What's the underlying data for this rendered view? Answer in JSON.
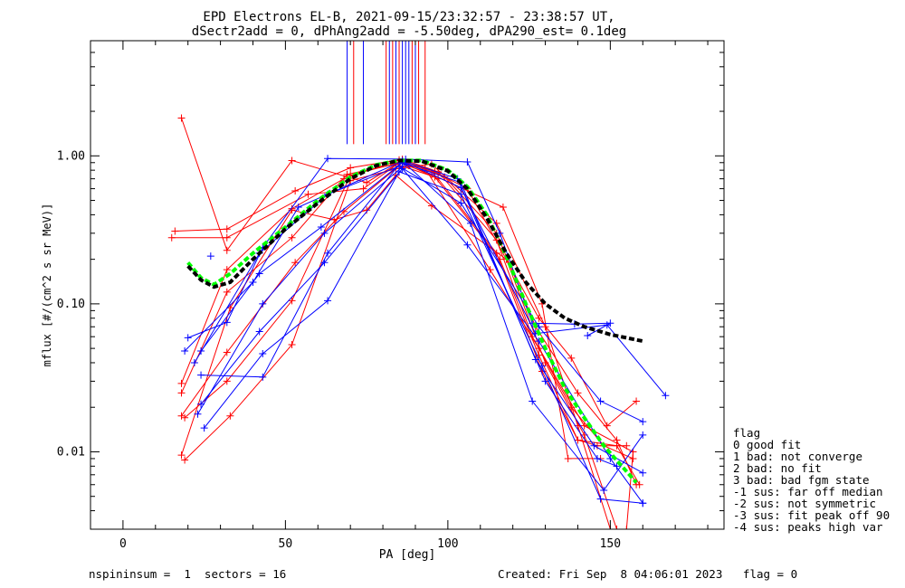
{
  "chart_data": {
    "type": "line",
    "title": "EPD Electrons EL-B, 2021-09-15/23:32:57 - 23:38:57 UT,",
    "subtitle": "dSectr2add = 0, dPhAng2add = -5.50deg, dPA290_est=   0.1deg",
    "xlabel": "PA [deg]",
    "ylabel": "mflux [#/(cm^2 s sr MeV)]",
    "xlim": [
      -10,
      185
    ],
    "ylim": [
      0.003,
      6
    ],
    "yscale": "log",
    "xticks": [
      0,
      50,
      100,
      150
    ],
    "xtick_labels": [
      "0",
      "50",
      "100",
      "150"
    ],
    "yticks": [
      0.01,
      0.1,
      1.0
    ],
    "ytick_labels": [
      "0.01",
      "0.10",
      "1.00"
    ],
    "grid": false,
    "legend": {
      "title": "flag",
      "entries": [
        " 0 good fit",
        " 1 bad: not converge",
        " 2 bad: no fit",
        " 3 bad: bad fgm state",
        "-1 sus: far off median",
        "-2 sus: not symmetric",
        "-3 sus: fit peak off 90",
        "-4 sus: peaks high var"
      ],
      "placement": "right-bottom"
    },
    "footer_left": "nspininsum =  1  sectors = 16",
    "footer_right": "Created: Fri Sep  8 04:06:01 2023   flag = 0",
    "colors": {
      "red": "#ff0000",
      "blue": "#0000ff",
      "green": "#00ff00",
      "black": "#000000"
    },
    "vlines": [
      {
        "x": 69,
        "color": "#0000ff"
      },
      {
        "x": 71,
        "color": "#ff0000"
      },
      {
        "x": 74,
        "color": "#0000ff"
      },
      {
        "x": 81,
        "color": "#ff0000"
      },
      {
        "x": 82,
        "color": "#0000ff"
      },
      {
        "x": 83,
        "color": "#ff0000"
      },
      {
        "x": 84,
        "color": "#0000ff"
      },
      {
        "x": 85,
        "color": "#ff0000"
      },
      {
        "x": 86,
        "color": "#0000ff"
      },
      {
        "x": 87,
        "color": "#0000ff"
      },
      {
        "x": 88,
        "color": "#0000ff"
      },
      {
        "x": 89,
        "color": "#ff0000"
      },
      {
        "x": 90,
        "color": "#0000ff"
      },
      {
        "x": 91,
        "color": "#ff0000"
      },
      {
        "x": 93,
        "color": "#ff0000"
      }
    ],
    "series": [
      {
        "color": "#ff0000",
        "points": [
          [
            18,
            1.8
          ],
          [
            32,
            0.23
          ],
          [
            52,
            0.93
          ],
          [
            75,
            0.66
          ],
          [
            85,
            0.9
          ],
          [
            95,
            0.75
          ],
          [
            117,
            0.45
          ],
          [
            129,
            0.1
          ],
          [
            137,
            0.009
          ],
          [
            147,
            0.009
          ]
        ]
      },
      {
        "color": "#ff0000",
        "points": [
          [
            16,
            0.31
          ],
          [
            32,
            0.32
          ],
          [
            53,
            0.58
          ],
          [
            70,
            0.83
          ],
          [
            85,
            0.94
          ],
          [
            96,
            0.78
          ],
          [
            106,
            0.6
          ],
          [
            128,
            0.08
          ],
          [
            138,
            0.043
          ],
          [
            149,
            0.015
          ],
          [
            158,
            0.022
          ]
        ]
      },
      {
        "color": "#ff0000",
        "points": [
          [
            15,
            0.28
          ],
          [
            32,
            0.28
          ],
          [
            57,
            0.55
          ],
          [
            74,
            0.6
          ],
          [
            86,
            0.93
          ],
          [
            99,
            0.72
          ],
          [
            115,
            0.3
          ],
          [
            127,
            0.07
          ],
          [
            140,
            0.025
          ],
          [
            152,
            0.012
          ],
          [
            158,
            0.006
          ]
        ]
      },
      {
        "color": "#ff0000",
        "points": [
          [
            18,
            0.029
          ],
          [
            32,
            0.17
          ],
          [
            52,
            0.44
          ],
          [
            68,
            0.7
          ],
          [
            86,
            0.95
          ],
          [
            97,
            0.78
          ],
          [
            115,
            0.27
          ],
          [
            126,
            0.06
          ],
          [
            142,
            0.015
          ],
          [
            157,
            0.01
          ],
          [
            155,
            0.003
          ]
        ]
      },
      {
        "color": "#ff0000",
        "points": [
          [
            18,
            0.025
          ],
          [
            32,
            0.12
          ],
          [
            52,
            0.28
          ],
          [
            69,
            0.75
          ],
          [
            84,
            0.88
          ],
          [
            96,
            0.72
          ],
          [
            116,
            0.2
          ],
          [
            128,
            0.045
          ],
          [
            140,
            0.012
          ],
          [
            152,
            0.011
          ],
          [
            159,
            0.006
          ]
        ]
      },
      {
        "color": "#ff0000",
        "points": [
          [
            18,
            0.0175
          ],
          [
            32,
            0.047
          ],
          [
            53,
            0.19
          ],
          [
            68,
            0.42
          ],
          [
            84,
            0.82
          ],
          [
            95,
            0.88
          ],
          [
            115,
            0.35
          ],
          [
            130,
            0.07
          ],
          [
            140,
            0.015
          ],
          [
            150,
            0.003
          ]
        ]
      },
      {
        "color": "#ff0000",
        "points": [
          [
            19,
            0.017
          ],
          [
            32,
            0.03
          ],
          [
            52,
            0.105
          ],
          [
            70,
            0.74
          ],
          [
            85,
            0.9
          ],
          [
            93,
            0.82
          ],
          [
            113,
            0.17
          ],
          [
            128,
            0.05
          ],
          [
            138,
            0.02
          ],
          [
            148,
            0.011
          ],
          [
            157,
            0.009
          ]
        ]
      },
      {
        "color": "#ff0000",
        "points": [
          [
            18,
            0.0095
          ],
          [
            33,
            0.094
          ],
          [
            52,
            0.43
          ],
          [
            65,
            0.37
          ],
          [
            75,
            0.43
          ],
          [
            84,
            0.74
          ],
          [
            95,
            0.46
          ],
          [
            118,
            0.2
          ],
          [
            130,
            0.04
          ],
          [
            142,
            0.013
          ],
          [
            152,
            0.003
          ]
        ]
      },
      {
        "color": "#ff0000",
        "points": [
          [
            19,
            0.0088
          ],
          [
            33,
            0.0175
          ],
          [
            52,
            0.053
          ],
          [
            70,
            0.68
          ],
          [
            88,
            0.86
          ],
          [
            97,
            0.7
          ],
          [
            115,
            0.22
          ],
          [
            129,
            0.035
          ],
          [
            140,
            0.012
          ],
          [
            146,
            0.011
          ],
          [
            155,
            0.011
          ]
        ]
      },
      {
        "color": "#0000ff",
        "points": [
          [
            20,
            0.059
          ],
          [
            32,
            0.075
          ],
          [
            43,
            0.24
          ],
          [
            63,
            0.96
          ],
          [
            87,
            0.95
          ],
          [
            106,
            0.91
          ],
          [
            116,
            0.3
          ],
          [
            126,
            0.074
          ],
          [
            139,
            0.073
          ],
          [
            150,
            0.074
          ],
          [
            143,
            0.061
          ]
        ]
      },
      {
        "color": "#0000ff",
        "points": [
          [
            19,
            0.048
          ],
          [
            40,
            0.14
          ],
          [
            54,
            0.45
          ],
          [
            86,
            0.92
          ],
          [
            104,
            0.61
          ],
          [
            127,
            0.063
          ],
          [
            149,
            0.072
          ],
          [
            167,
            0.024
          ]
        ]
      },
      {
        "color": "#0000ff",
        "points": [
          [
            22,
            0.04
          ],
          [
            42,
            0.22
          ],
          [
            63,
            0.55
          ],
          [
            85,
            0.85
          ],
          [
            104,
            0.48
          ],
          [
            128,
            0.07
          ],
          [
            147,
            0.022
          ],
          [
            160,
            0.016
          ]
        ]
      },
      {
        "color": "#0000ff",
        "points": [
          [
            24,
            0.048
          ],
          [
            42,
            0.16
          ],
          [
            61,
            0.33
          ],
          [
            86,
            0.9
          ],
          [
            104,
            0.66
          ],
          [
            127,
            0.042
          ],
          [
            145,
            0.011
          ],
          [
            160,
            0.0072
          ]
        ]
      },
      {
        "color": "#0000ff",
        "points": [
          [
            23,
            0.018
          ],
          [
            43,
            0.1
          ],
          [
            62,
            0.3
          ],
          [
            87,
            0.88
          ],
          [
            107,
            0.35
          ],
          [
            126,
            0.022
          ],
          [
            148,
            0.0055
          ],
          [
            160,
            0.013
          ]
        ]
      },
      {
        "color": "#0000ff",
        "points": [
          [
            24,
            0.021
          ],
          [
            42,
            0.065
          ],
          [
            62,
            0.19
          ],
          [
            86,
            0.82
          ],
          [
            106,
            0.25
          ],
          [
            128,
            0.056
          ],
          [
            150,
            0.009
          ],
          [
            160,
            0.0045
          ]
        ]
      },
      {
        "color": "#0000ff",
        "points": [
          [
            25,
            0.0145
          ],
          [
            43,
            0.046
          ],
          [
            63,
            0.105
          ],
          [
            85,
            0.78
          ],
          [
            104,
            0.55
          ],
          [
            129,
            0.038
          ],
          [
            147,
            0.0048
          ],
          [
            160,
            0.0045
          ]
        ]
      },
      {
        "color": "#0000ff",
        "points": [
          [
            24,
            0.033
          ],
          [
            43,
            0.032
          ],
          [
            63,
            0.22
          ],
          [
            86,
            0.93
          ],
          [
            103,
            0.7
          ],
          [
            130,
            0.03
          ],
          [
            146,
            0.009
          ],
          [
            152,
            0.008
          ]
        ]
      },
      {
        "color": "#0000ff",
        "points": [
          [
            27,
            0.21
          ]
        ]
      }
    ],
    "fits": [
      {
        "name": "",
        "color": "#00ff00",
        "style": "dashed",
        "points": [
          [
            20,
            0.19
          ],
          [
            24,
            0.15
          ],
          [
            28,
            0.135
          ],
          [
            33,
            0.16
          ],
          [
            40,
            0.22
          ],
          [
            50,
            0.33
          ],
          [
            60,
            0.5
          ],
          [
            70,
            0.72
          ],
          [
            78,
            0.87
          ],
          [
            85,
            0.93
          ],
          [
            92,
            0.93
          ],
          [
            100,
            0.8
          ],
          [
            106,
            0.62
          ],
          [
            112,
            0.4
          ],
          [
            118,
            0.21
          ],
          [
            124,
            0.1
          ],
          [
            130,
            0.05
          ],
          [
            136,
            0.027
          ],
          [
            142,
            0.017
          ],
          [
            148,
            0.011
          ],
          [
            154,
            0.0078
          ],
          [
            158,
            0.0062
          ]
        ]
      },
      {
        "name": "",
        "color": "#000000",
        "style": "dashed",
        "points": [
          [
            20,
            0.18
          ],
          [
            24,
            0.145
          ],
          [
            28,
            0.13
          ],
          [
            33,
            0.14
          ],
          [
            40,
            0.2
          ],
          [
            50,
            0.32
          ],
          [
            60,
            0.48
          ],
          [
            70,
            0.7
          ],
          [
            78,
            0.86
          ],
          [
            85,
            0.93
          ],
          [
            92,
            0.92
          ],
          [
            100,
            0.79
          ],
          [
            106,
            0.6
          ],
          [
            112,
            0.38
          ],
          [
            118,
            0.22
          ],
          [
            124,
            0.14
          ],
          [
            130,
            0.1
          ],
          [
            136,
            0.08
          ],
          [
            142,
            0.07
          ],
          [
            150,
            0.062
          ],
          [
            160,
            0.056
          ]
        ]
      }
    ]
  }
}
